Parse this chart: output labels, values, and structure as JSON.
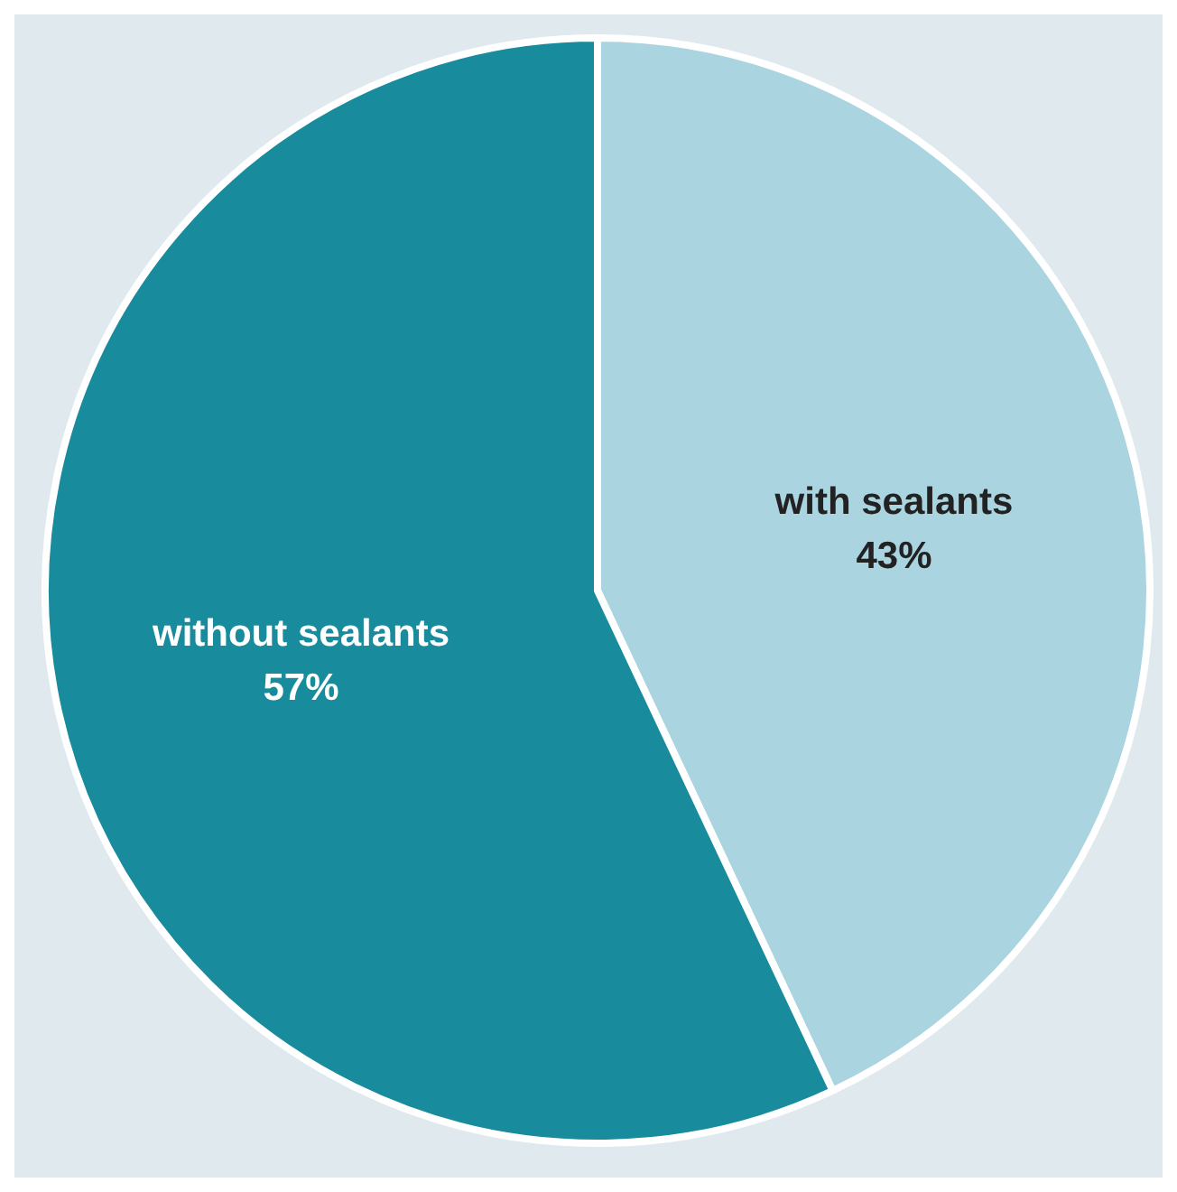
{
  "chart_data": {
    "type": "pie",
    "categories": [
      "with sealants",
      "without sealants"
    ],
    "values": [
      43,
      57
    ],
    "colors": [
      "#a9d4e0",
      "#188b9d"
    ],
    "value_labels": [
      "43%",
      "57%"
    ]
  }
}
